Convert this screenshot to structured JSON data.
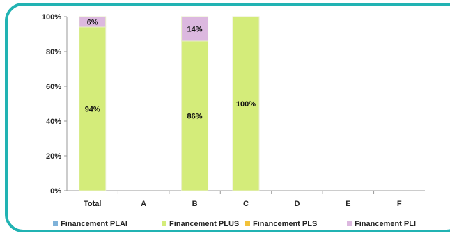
{
  "chart_data": {
    "type": "bar",
    "stacked": true,
    "percent": true,
    "categories": [
      "Total",
      "A",
      "B",
      "C",
      "D",
      "E",
      "F"
    ],
    "yticks": [
      "0%",
      "20%",
      "40%",
      "60%",
      "80%",
      "100%"
    ],
    "ylim": [
      0,
      100
    ],
    "grid": false,
    "legend_position": "bottom",
    "series": [
      {
        "name": "Financement PLAI",
        "color": "#7fb2d9",
        "values": [
          0,
          0,
          0,
          0,
          0,
          0,
          0
        ],
        "labels": [
          "",
          "",
          "",
          "",
          "",
          "",
          ""
        ]
      },
      {
        "name": "Financement PLUS",
        "color": "#d4ec7a",
        "values": [
          94,
          0,
          86,
          100,
          0,
          0,
          0
        ],
        "labels": [
          "94%",
          "",
          "86%",
          "100%",
          "",
          "",
          ""
        ]
      },
      {
        "name": "Financement PLS",
        "color": "#f2c23a",
        "values": [
          0,
          0,
          0,
          0,
          0,
          0,
          0
        ],
        "labels": [
          "",
          "",
          "",
          "",
          "",
          "",
          ""
        ]
      },
      {
        "name": "Financement PLI",
        "color": "#dcb8df",
        "values": [
          6,
          0,
          14,
          0,
          0,
          0,
          0
        ],
        "labels": [
          "6%",
          "",
          "14%",
          "",
          "",
          "",
          ""
        ]
      }
    ]
  }
}
